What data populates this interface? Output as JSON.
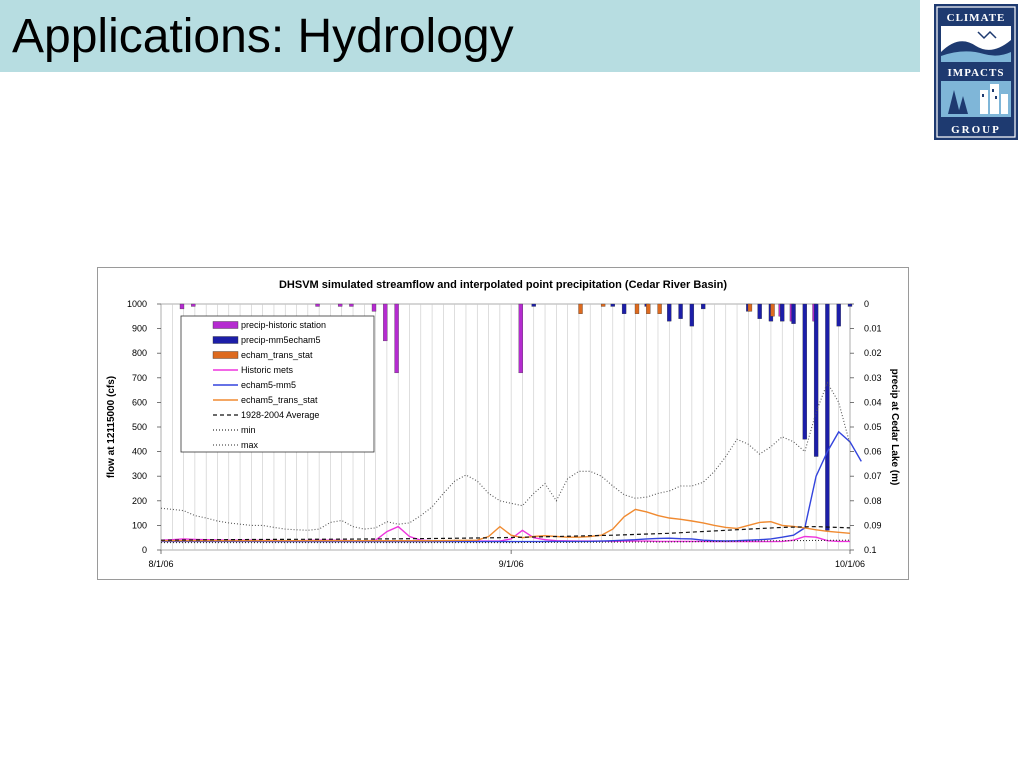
{
  "slide": {
    "title": "Applications: Hydrology"
  },
  "logo": {
    "line1": "CLIMATE",
    "line2": "IMPACTS",
    "line3": "GROUP",
    "colors": {
      "navy": "#1e3a70",
      "sky": "#7fb6d8",
      "white": "#ffffff"
    }
  },
  "chart_data": {
    "type": "line",
    "title": "DHSVM simulated streamflow and interpolated point precipitation (Cedar River Basin)",
    "ylabel": "flow at 12115000 (cfs)",
    "y2label": "precip at Cedar Lake (m)",
    "ylim": [
      0,
      1000
    ],
    "y2lim": [
      0,
      0.1
    ],
    "y2_inverted": true,
    "yticks": [
      "0",
      "100",
      "200",
      "300",
      "400",
      "500",
      "600",
      "700",
      "800",
      "900",
      "1000"
    ],
    "y2ticks": [
      "0",
      "0.01",
      "0.02",
      "0.03",
      "0.04",
      "0.05",
      "0.06",
      "0.07",
      "0.08",
      "0.09",
      "0.1"
    ],
    "xlim": [
      0,
      61
    ],
    "xticks": [
      {
        "day": 0,
        "label": "8/1/06"
      },
      {
        "day": 31,
        "label": "9/1/06"
      },
      {
        "day": 61,
        "label": "10/1/06"
      }
    ],
    "grid": "vertical-daily",
    "legend_position": "top-left",
    "legend": [
      {
        "label": "precip-historic station",
        "kind": "bar",
        "color": "#b52bd0"
      },
      {
        "label": "precip-mm5echam5",
        "kind": "bar",
        "color": "#1c1ea8"
      },
      {
        "label": "echam_trans_stat",
        "kind": "bar",
        "color": "#dd6a1f"
      },
      {
        "label": "Historic mets",
        "kind": "line",
        "color": "#ee33dd"
      },
      {
        "label": "echam5-mm5",
        "kind": "line",
        "color": "#3344dd"
      },
      {
        "label": "echam5_trans_stat",
        "kind": "line",
        "color": "#f08a30"
      },
      {
        "label": "1928-2004 Average",
        "kind": "dashed",
        "color": "#111111"
      },
      {
        "label": "min",
        "kind": "dotted",
        "color": "#333333"
      },
      {
        "label": "max",
        "kind": "dotted",
        "color": "#555555"
      }
    ],
    "bars": [
      {
        "series": "precip-historic station",
        "color": "#b52bd0",
        "values": [
          [
            2,
            0.002
          ],
          [
            3,
            0.001
          ],
          [
            14,
            0.001
          ],
          [
            16,
            0.001
          ],
          [
            17,
            0.001
          ],
          [
            19,
            0.003
          ],
          [
            20,
            0.015
          ],
          [
            21,
            0.028
          ],
          [
            32,
            0.028
          ],
          [
            55,
            0.005
          ],
          [
            56,
            0.007
          ],
          [
            58,
            0.007
          ]
        ]
      },
      {
        "series": "precip-mm5echam5",
        "color": "#1c1ea8",
        "values": [
          [
            33,
            0.001
          ],
          [
            40,
            0.001
          ],
          [
            41,
            0.004
          ],
          [
            43,
            0.001
          ],
          [
            45,
            0.007
          ],
          [
            46,
            0.006
          ],
          [
            47,
            0.009
          ],
          [
            48,
            0.002
          ],
          [
            52,
            0.003
          ],
          [
            53,
            0.006
          ],
          [
            54,
            0.007
          ],
          [
            55,
            0.007
          ],
          [
            56,
            0.008
          ],
          [
            57,
            0.055
          ],
          [
            58,
            0.062
          ],
          [
            59,
            0.092
          ],
          [
            60,
            0.009
          ],
          [
            61,
            0.001
          ]
        ]
      },
      {
        "series": "echam_trans_stat",
        "color": "#dd6a1f",
        "values": [
          [
            37,
            0.004
          ],
          [
            39,
            0.001
          ],
          [
            42,
            0.004
          ],
          [
            43,
            0.004
          ],
          [
            44,
            0.004
          ],
          [
            52,
            0.003
          ],
          [
            54,
            0.005
          ]
        ]
      }
    ],
    "series": [
      {
        "name": "Historic mets",
        "color": "#ee33dd",
        "style": "solid",
        "width": 1.4,
        "points": [
          [
            0,
            40
          ],
          [
            1,
            42
          ],
          [
            2,
            45
          ],
          [
            3,
            43
          ],
          [
            4,
            42
          ],
          [
            5,
            41
          ],
          [
            6,
            40
          ],
          [
            7,
            40
          ],
          [
            8,
            40
          ],
          [
            9,
            39
          ],
          [
            10,
            39
          ],
          [
            11,
            38
          ],
          [
            12,
            38
          ],
          [
            13,
            39
          ],
          [
            14,
            40
          ],
          [
            15,
            40
          ],
          [
            16,
            39
          ],
          [
            17,
            38
          ],
          [
            18,
            37
          ],
          [
            19,
            40
          ],
          [
            20,
            75
          ],
          [
            21,
            95
          ],
          [
            22,
            55
          ],
          [
            23,
            40
          ],
          [
            24,
            38
          ],
          [
            25,
            37
          ],
          [
            26,
            37
          ],
          [
            27,
            36
          ],
          [
            28,
            36
          ],
          [
            29,
            36
          ],
          [
            30,
            36
          ],
          [
            31,
            45
          ],
          [
            32,
            80
          ],
          [
            33,
            50
          ],
          [
            34,
            42
          ],
          [
            35,
            38
          ],
          [
            36,
            37
          ],
          [
            37,
            36
          ],
          [
            38,
            36
          ],
          [
            39,
            36
          ],
          [
            40,
            35
          ],
          [
            41,
            36
          ],
          [
            42,
            36
          ],
          [
            43,
            36
          ],
          [
            44,
            35
          ],
          [
            45,
            35
          ],
          [
            46,
            35
          ],
          [
            47,
            35
          ],
          [
            48,
            35
          ],
          [
            49,
            34
          ],
          [
            50,
            34
          ],
          [
            51,
            34
          ],
          [
            52,
            34
          ],
          [
            53,
            34
          ],
          [
            54,
            34
          ],
          [
            55,
            35
          ],
          [
            56,
            40
          ],
          [
            57,
            55
          ],
          [
            58,
            52
          ],
          [
            59,
            38
          ],
          [
            60,
            35
          ],
          [
            61,
            35
          ]
        ]
      },
      {
        "name": "echam5-mm5",
        "color": "#3344dd",
        "style": "solid",
        "width": 1.4,
        "points": [
          [
            0,
            35
          ],
          [
            4,
            35
          ],
          [
            8,
            35
          ],
          [
            12,
            34
          ],
          [
            16,
            34
          ],
          [
            20,
            34
          ],
          [
            24,
            34
          ],
          [
            28,
            34
          ],
          [
            31,
            34
          ],
          [
            33,
            34
          ],
          [
            35,
            35
          ],
          [
            37,
            35
          ],
          [
            38,
            35
          ],
          [
            39,
            36
          ],
          [
            40,
            38
          ],
          [
            41,
            40
          ],
          [
            42,
            42
          ],
          [
            43,
            45
          ],
          [
            44,
            47
          ],
          [
            45,
            48
          ],
          [
            46,
            46
          ],
          [
            47,
            45
          ],
          [
            48,
            40
          ],
          [
            49,
            38
          ],
          [
            50,
            37
          ],
          [
            51,
            38
          ],
          [
            52,
            40
          ],
          [
            53,
            42
          ],
          [
            54,
            45
          ],
          [
            55,
            52
          ],
          [
            56,
            60
          ],
          [
            57,
            90
          ],
          [
            58,
            300
          ],
          [
            59,
            400
          ],
          [
            60,
            480
          ],
          [
            61,
            440
          ],
          [
            62,
            360
          ]
        ]
      },
      {
        "name": "echam5_trans_stat",
        "color": "#f08a30",
        "style": "solid",
        "width": 1.4,
        "points": [
          [
            0,
            38
          ],
          [
            4,
            38
          ],
          [
            8,
            38
          ],
          [
            12,
            38
          ],
          [
            16,
            38
          ],
          [
            20,
            38
          ],
          [
            24,
            38
          ],
          [
            28,
            40
          ],
          [
            29,
            55
          ],
          [
            30,
            95
          ],
          [
            31,
            60
          ],
          [
            32,
            50
          ],
          [
            33,
            55
          ],
          [
            34,
            58
          ],
          [
            35,
            55
          ],
          [
            36,
            52
          ],
          [
            37,
            52
          ],
          [
            38,
            55
          ],
          [
            39,
            60
          ],
          [
            40,
            85
          ],
          [
            41,
            135
          ],
          [
            42,
            165
          ],
          [
            43,
            155
          ],
          [
            44,
            140
          ],
          [
            45,
            130
          ],
          [
            46,
            125
          ],
          [
            47,
            118
          ],
          [
            48,
            110
          ],
          [
            49,
            100
          ],
          [
            50,
            92
          ],
          [
            51,
            88
          ],
          [
            52,
            100
          ],
          [
            53,
            112
          ],
          [
            54,
            115
          ],
          [
            55,
            100
          ],
          [
            56,
            96
          ],
          [
            57,
            90
          ],
          [
            58,
            82
          ],
          [
            59,
            76
          ],
          [
            60,
            72
          ],
          [
            61,
            68
          ]
        ]
      },
      {
        "name": "1928-2004 Average",
        "color": "#111111",
        "style": "dashed",
        "width": 1.2,
        "points": [
          [
            0,
            40
          ],
          [
            5,
            42
          ],
          [
            10,
            43
          ],
          [
            15,
            44
          ],
          [
            20,
            45
          ],
          [
            25,
            47
          ],
          [
            30,
            50
          ],
          [
            35,
            55
          ],
          [
            40,
            60
          ],
          [
            45,
            68
          ],
          [
            50,
            80
          ],
          [
            55,
            92
          ],
          [
            58,
            95
          ],
          [
            61,
            90
          ]
        ]
      },
      {
        "name": "min",
        "color": "#333333",
        "style": "dotted",
        "width": 1.1,
        "points": [
          [
            0,
            30
          ],
          [
            10,
            30
          ],
          [
            20,
            30
          ],
          [
            30,
            30
          ],
          [
            40,
            32
          ],
          [
            45,
            33
          ],
          [
            50,
            35
          ],
          [
            55,
            38
          ],
          [
            61,
            40
          ]
        ]
      },
      {
        "name": "max",
        "color": "#555555",
        "style": "dotted",
        "width": 1.1,
        "points": [
          [
            0,
            170
          ],
          [
            1,
            165
          ],
          [
            2,
            160
          ],
          [
            3,
            140
          ],
          [
            4,
            130
          ],
          [
            5,
            118
          ],
          [
            6,
            110
          ],
          [
            7,
            105
          ],
          [
            8,
            100
          ],
          [
            9,
            100
          ],
          [
            10,
            92
          ],
          [
            11,
            85
          ],
          [
            12,
            82
          ],
          [
            13,
            80
          ],
          [
            14,
            85
          ],
          [
            15,
            112
          ],
          [
            16,
            120
          ],
          [
            17,
            95
          ],
          [
            18,
            85
          ],
          [
            19,
            90
          ],
          [
            20,
            115
          ],
          [
            21,
            105
          ],
          [
            22,
            110
          ],
          [
            23,
            140
          ],
          [
            24,
            175
          ],
          [
            25,
            230
          ],
          [
            26,
            280
          ],
          [
            27,
            305
          ],
          [
            28,
            280
          ],
          [
            29,
            230
          ],
          [
            30,
            200
          ],
          [
            31,
            190
          ],
          [
            32,
            180
          ],
          [
            33,
            230
          ],
          [
            34,
            270
          ],
          [
            35,
            200
          ],
          [
            36,
            290
          ],
          [
            37,
            320
          ],
          [
            38,
            320
          ],
          [
            39,
            300
          ],
          [
            40,
            260
          ],
          [
            41,
            225
          ],
          [
            42,
            210
          ],
          [
            43,
            215
          ],
          [
            44,
            230
          ],
          [
            45,
            240
          ],
          [
            46,
            260
          ],
          [
            47,
            260
          ],
          [
            48,
            275
          ],
          [
            49,
            320
          ],
          [
            50,
            380
          ],
          [
            51,
            450
          ],
          [
            52,
            430
          ],
          [
            53,
            390
          ],
          [
            54,
            420
          ],
          [
            55,
            460
          ],
          [
            56,
            440
          ],
          [
            57,
            400
          ],
          [
            58,
            560
          ],
          [
            59,
            680
          ],
          [
            60,
            600
          ],
          [
            61,
            430
          ]
        ]
      }
    ]
  }
}
